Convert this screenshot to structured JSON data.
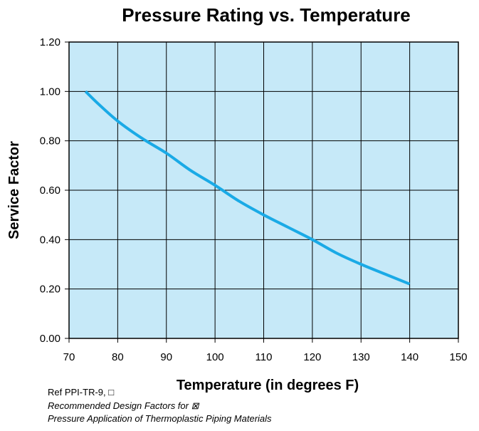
{
  "chart_data": {
    "type": "line",
    "title": "Pressure Rating vs. Temperature",
    "xlabel": "Temperature (in degrees F)",
    "ylabel": "Service Factor",
    "xlim": [
      70,
      150
    ],
    "ylim": [
      0,
      1.2
    ],
    "x_ticks": [
      "70",
      "80",
      "90",
      "100",
      "110",
      "120",
      "130",
      "140",
      "150"
    ],
    "y_ticks": [
      "0.00",
      "0.20",
      "0.40",
      "0.60",
      "0.80",
      "1.00",
      "1.20"
    ],
    "grid": true,
    "series": [
      {
        "color": "#1aaae6",
        "x": [
          73.4,
          76,
          80,
          85,
          90,
          95,
          100,
          105,
          110,
          115,
          120,
          125,
          130,
          135,
          140
        ],
        "y": [
          1.0,
          0.95,
          0.88,
          0.81,
          0.75,
          0.68,
          0.62,
          0.555,
          0.5,
          0.45,
          0.4,
          0.345,
          0.3,
          0.26,
          0.22
        ]
      }
    ]
  },
  "colors": {
    "plot_background": "#c6e9f8",
    "line": "#1aaae6",
    "grid": "#000000"
  },
  "reference": {
    "line1": "Ref PPI-TR-9, □",
    "line2": "Recommended Design Factors for ⊠",
    "line3": "Pressure Application of Thermoplastic Piping Materials"
  }
}
